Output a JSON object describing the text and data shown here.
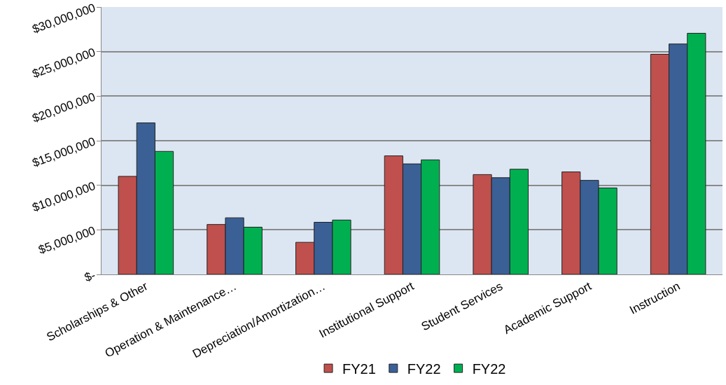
{
  "chart_data": {
    "type": "bar",
    "categories": [
      "Scholarships & Other",
      "Operation & Maintenance…",
      "Depreciation/Amortization…",
      "Institutional Support",
      "Student Services",
      "Academic Support",
      "Instruction"
    ],
    "series": [
      {
        "name": "FY21",
        "color": "#c0504d",
        "values": [
          11000000,
          5600000,
          3600000,
          13300000,
          11200000,
          11500000,
          24700000
        ]
      },
      {
        "name": "FY22",
        "color": "#3a6096",
        "values": [
          17000000,
          6350000,
          5850000,
          12400000,
          10850000,
          10550000,
          25850000
        ]
      },
      {
        "name": "FY22",
        "color": "#00b050",
        "values": [
          13800000,
          5300000,
          6100000,
          12850000,
          11800000,
          9700000,
          27050000
        ]
      }
    ],
    "ylim": [
      0,
      30000000
    ],
    "yticks": [
      {
        "value": 0,
        "label": "$-"
      },
      {
        "value": 5000000,
        "label": "$5,000,000"
      },
      {
        "value": 10000000,
        "label": "$10,000,000"
      },
      {
        "value": 15000000,
        "label": "$15,000,000"
      },
      {
        "value": 20000000,
        "label": "$20,000,000"
      },
      {
        "value": 25000000,
        "label": "$25,000,000"
      },
      {
        "value": 30000000,
        "label": "$30,000,000"
      }
    ],
    "grid": "y",
    "legend": "bottom"
  }
}
